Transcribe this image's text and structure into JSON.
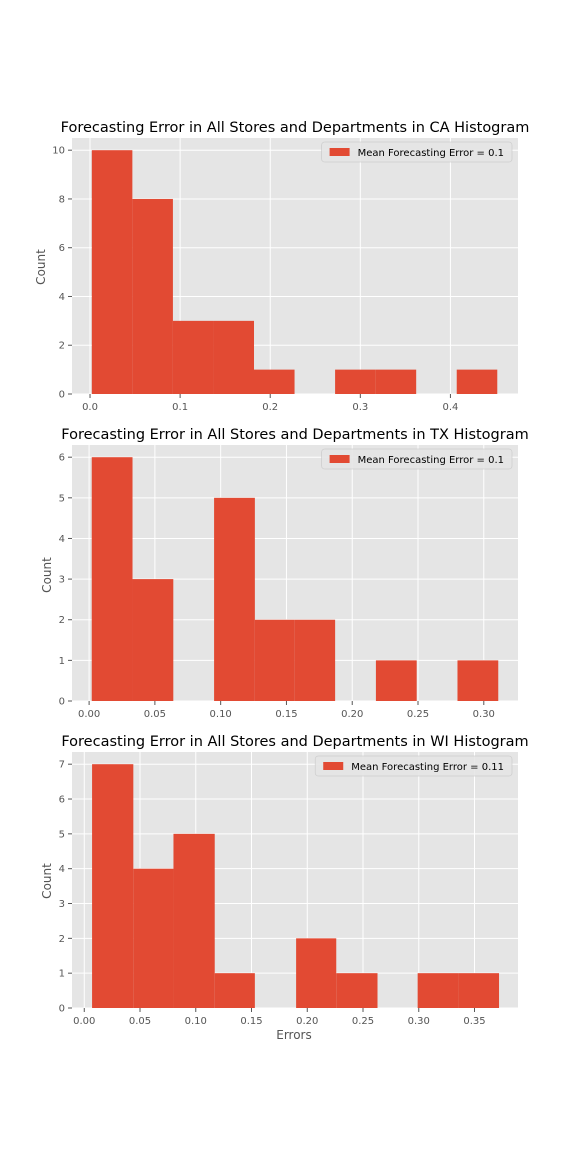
{
  "colors": {
    "bar": "#E24A33",
    "panel_background": "#E5E5E5",
    "grid": "#FFFFFF",
    "text": "#555555"
  },
  "chart_data": [
    {
      "type": "bar",
      "title": "Forecasting Error in All Stores and Departments in CA Histogram",
      "xlabel": "",
      "ylabel": "Count",
      "legend": "Mean Forecasting Error = 0.1",
      "legend_position": "top-right",
      "grid": true,
      "xlim": [
        -0.02,
        0.475
      ],
      "ylim": [
        0,
        10.5
      ],
      "xticks": [
        "0.0",
        "0.1",
        "0.2",
        "0.3",
        "0.4"
      ],
      "xtick_values": [
        0.0,
        0.1,
        0.2,
        0.3,
        0.4
      ],
      "yticks": [
        "0",
        "2",
        "4",
        "6",
        "8",
        "10"
      ],
      "ytick_values": [
        0,
        2,
        4,
        6,
        8,
        10
      ],
      "bin_edges": [
        0.002,
        0.047,
        0.092,
        0.137,
        0.182,
        0.227,
        0.272,
        0.317,
        0.362,
        0.407,
        0.452
      ],
      "values": [
        10,
        8,
        3,
        3,
        1,
        0,
        1,
        1,
        0,
        1
      ]
    },
    {
      "type": "bar",
      "title": "Forecasting Error in All Stores and Departments in TX Histogram",
      "xlabel": "",
      "ylabel": "Count",
      "legend": "Mean Forecasting Error = 0.1",
      "legend_position": "top-right",
      "grid": true,
      "xlim": [
        -0.013,
        0.326
      ],
      "ylim": [
        0,
        6.3
      ],
      "xticks": [
        "0.00",
        "0.05",
        "0.10",
        "0.15",
        "0.20",
        "0.25",
        "0.30"
      ],
      "xtick_values": [
        0.0,
        0.05,
        0.1,
        0.15,
        0.2,
        0.25,
        0.3
      ],
      "yticks": [
        "0",
        "1",
        "2",
        "3",
        "4",
        "5",
        "6"
      ],
      "ytick_values": [
        0,
        1,
        2,
        3,
        4,
        5,
        6
      ],
      "bin_edges": [
        0.002,
        0.033,
        0.064,
        0.095,
        0.126,
        0.156,
        0.187,
        0.218,
        0.249,
        0.28,
        0.311
      ],
      "values": [
        6,
        3,
        0,
        5,
        2,
        2,
        0,
        1,
        0,
        1
      ]
    },
    {
      "type": "bar",
      "title": "Forecasting Error in All Stores and Departments in WI Histogram",
      "xlabel": "Errors",
      "ylabel": "Count",
      "legend": "Mean Forecasting Error = 0.11",
      "legend_position": "top-right",
      "grid": true,
      "xlim": [
        -0.011,
        0.389
      ],
      "ylim": [
        0,
        7.35
      ],
      "xticks": [
        "0.00",
        "0.05",
        "0.10",
        "0.15",
        "0.20",
        "0.25",
        "0.30",
        "0.35"
      ],
      "xtick_values": [
        0.0,
        0.05,
        0.1,
        0.15,
        0.2,
        0.25,
        0.3,
        0.35
      ],
      "yticks": [
        "0",
        "1",
        "2",
        "3",
        "4",
        "5",
        "6",
        "7"
      ],
      "ytick_values": [
        0,
        1,
        2,
        3,
        4,
        5,
        6,
        7
      ],
      "bin_edges": [
        0.007,
        0.044,
        0.08,
        0.117,
        0.153,
        0.19,
        0.226,
        0.263,
        0.299,
        0.336,
        0.372
      ],
      "values": [
        7,
        4,
        5,
        1,
        0,
        2,
        1,
        0,
        1,
        1
      ]
    }
  ]
}
